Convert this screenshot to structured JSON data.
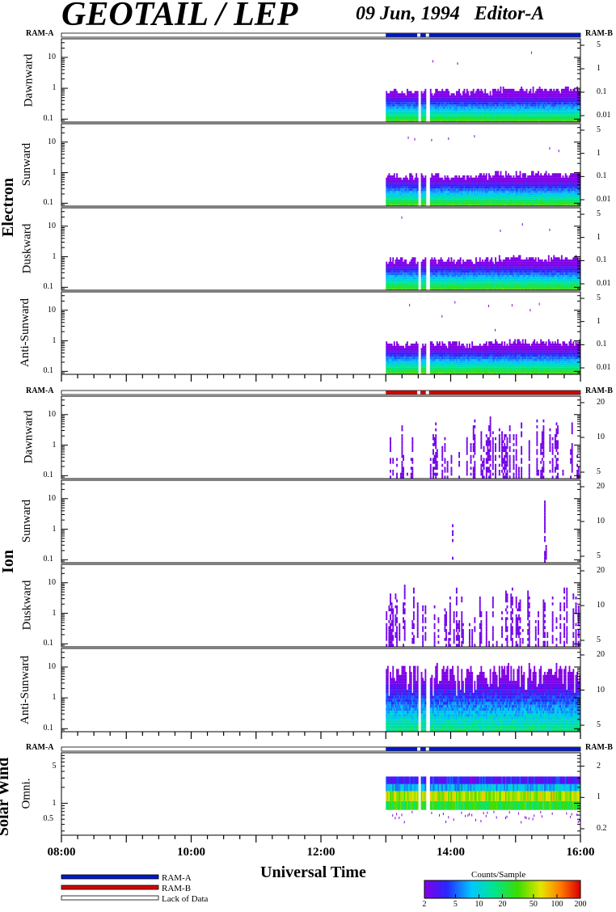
{
  "header": {
    "title": "GEOTAIL / LEP",
    "date": "09 Jun, 1994",
    "editor": "Editor-A"
  },
  "chart_data": {
    "type": "heatmap",
    "x_axis": {
      "label": "Universal Time",
      "range": [
        "08:00",
        "16:00"
      ],
      "ticks": [
        "08:00",
        "10:00",
        "12:00",
        "14:00",
        "16:00"
      ]
    },
    "data_start": "13:00",
    "data_gaps": [
      "13:29-13:32",
      "13:37-13:40"
    ],
    "groups": [
      {
        "name": "Electron",
        "ram_left": "RAM-A",
        "ram_right": "RAM-B",
        "ram_bar": {
          "start": "13:00",
          "end": "16:00",
          "mode": "RAM-A"
        },
        "panels": [
          {
            "name": "Dawnward",
            "left_ticks": [
              "0.1",
              "1",
              "10"
            ],
            "right_ticks": [
              "0.01",
              "0.1",
              "1",
              "5"
            ],
            "ylog": true,
            "ylim": [
              0.08,
              40
            ]
          },
          {
            "name": "Sunward",
            "left_ticks": [
              "0.1",
              "1",
              "10"
            ],
            "right_ticks": [
              "0.01",
              "0.1",
              "1",
              "5"
            ],
            "ylog": true,
            "ylim": [
              0.08,
              40
            ]
          },
          {
            "name": "Duskward",
            "left_ticks": [
              "0.1",
              "1",
              "10"
            ],
            "right_ticks": [
              "0.01",
              "0.1",
              "1",
              "5"
            ],
            "ylog": true,
            "ylim": [
              0.08,
              40
            ]
          },
          {
            "name": "Anti-Sunward",
            "left_ticks": [
              "0.1",
              "1",
              "10"
            ],
            "right_ticks": [
              "0.01",
              "0.1",
              "1",
              "5"
            ],
            "ylog": true,
            "ylim": [
              0.08,
              40
            ]
          }
        ]
      },
      {
        "name": "Ion",
        "ram_left": "RAM-A",
        "ram_right": "RAM-B",
        "ram_bar": {
          "start": "13:00",
          "end": "16:00",
          "mode": "RAM-B"
        },
        "panels": [
          {
            "name": "Dawnward",
            "left_ticks": [
              "0.1",
              "1",
              "10"
            ],
            "right_ticks": [
              "5",
              "10",
              "20"
            ],
            "ylog": true,
            "ylim": [
              0.08,
              40
            ]
          },
          {
            "name": "Sunward",
            "left_ticks": [
              "0.1",
              "1",
              "10"
            ],
            "right_ticks": [
              "5",
              "10",
              "20"
            ],
            "ylog": true,
            "ylim": [
              0.08,
              40
            ]
          },
          {
            "name": "Duskward",
            "left_ticks": [
              "0.1",
              "1",
              "10"
            ],
            "right_ticks": [
              "5",
              "10",
              "20"
            ],
            "ylog": true,
            "ylim": [
              0.08,
              40
            ]
          },
          {
            "name": "Anti-Sunward",
            "left_ticks": [
              "0.1",
              "1",
              "10"
            ],
            "right_ticks": [
              "5",
              "10",
              "20"
            ],
            "ylog": true,
            "ylim": [
              0.08,
              40
            ]
          }
        ]
      },
      {
        "name": "Solar Wind",
        "ram_left": "RAM-A",
        "ram_right": "RAM-B",
        "ram_bar": {
          "start": "13:00",
          "end": "16:00",
          "mode": "RAM-A"
        },
        "panels": [
          {
            "name": "Omni.",
            "left_ticks": [
              "0.5",
              "1",
              "5"
            ],
            "right_ticks": [
              "0.2",
              "1",
              "2"
            ],
            "ylog": true,
            "ylim": [
              0.25,
              9
            ]
          }
        ]
      }
    ],
    "legend": [
      {
        "label": "RAM-A",
        "color": "#0018c8"
      },
      {
        "label": "RAM-B",
        "color": "#d80000"
      },
      {
        "label": "Lack of Data",
        "color": "#ffffff"
      }
    ],
    "colorbar": {
      "title": "Counts/Sample",
      "ticks": [
        "2",
        "5",
        "10",
        "20",
        "50",
        "100",
        "200"
      ],
      "range": [
        2,
        200
      ],
      "scale": "log"
    }
  }
}
